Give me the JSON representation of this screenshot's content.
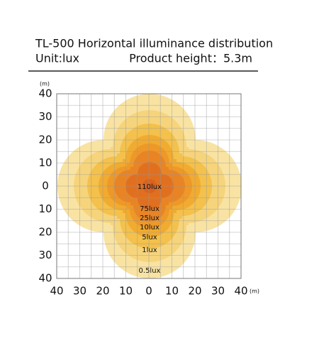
{
  "header": {
    "title": "TL-500 Horizontal illuminance distribution",
    "unit": "Unit:lux",
    "height": "Product height：5.3m"
  },
  "axis": {
    "y_unit": "(m)",
    "x_unit": "(m)",
    "y_ticks": [
      "40",
      "30",
      "20",
      "10",
      "0",
      "10",
      "20",
      "30",
      "40"
    ],
    "x_ticks": [
      "40",
      "30",
      "20",
      "10",
      "0",
      "10",
      "20",
      "30",
      "40"
    ]
  },
  "contours": [
    "110lux",
    "75lux",
    "25lux",
    "10lux",
    "5lux",
    "1lux",
    "0.5lux"
  ]
}
